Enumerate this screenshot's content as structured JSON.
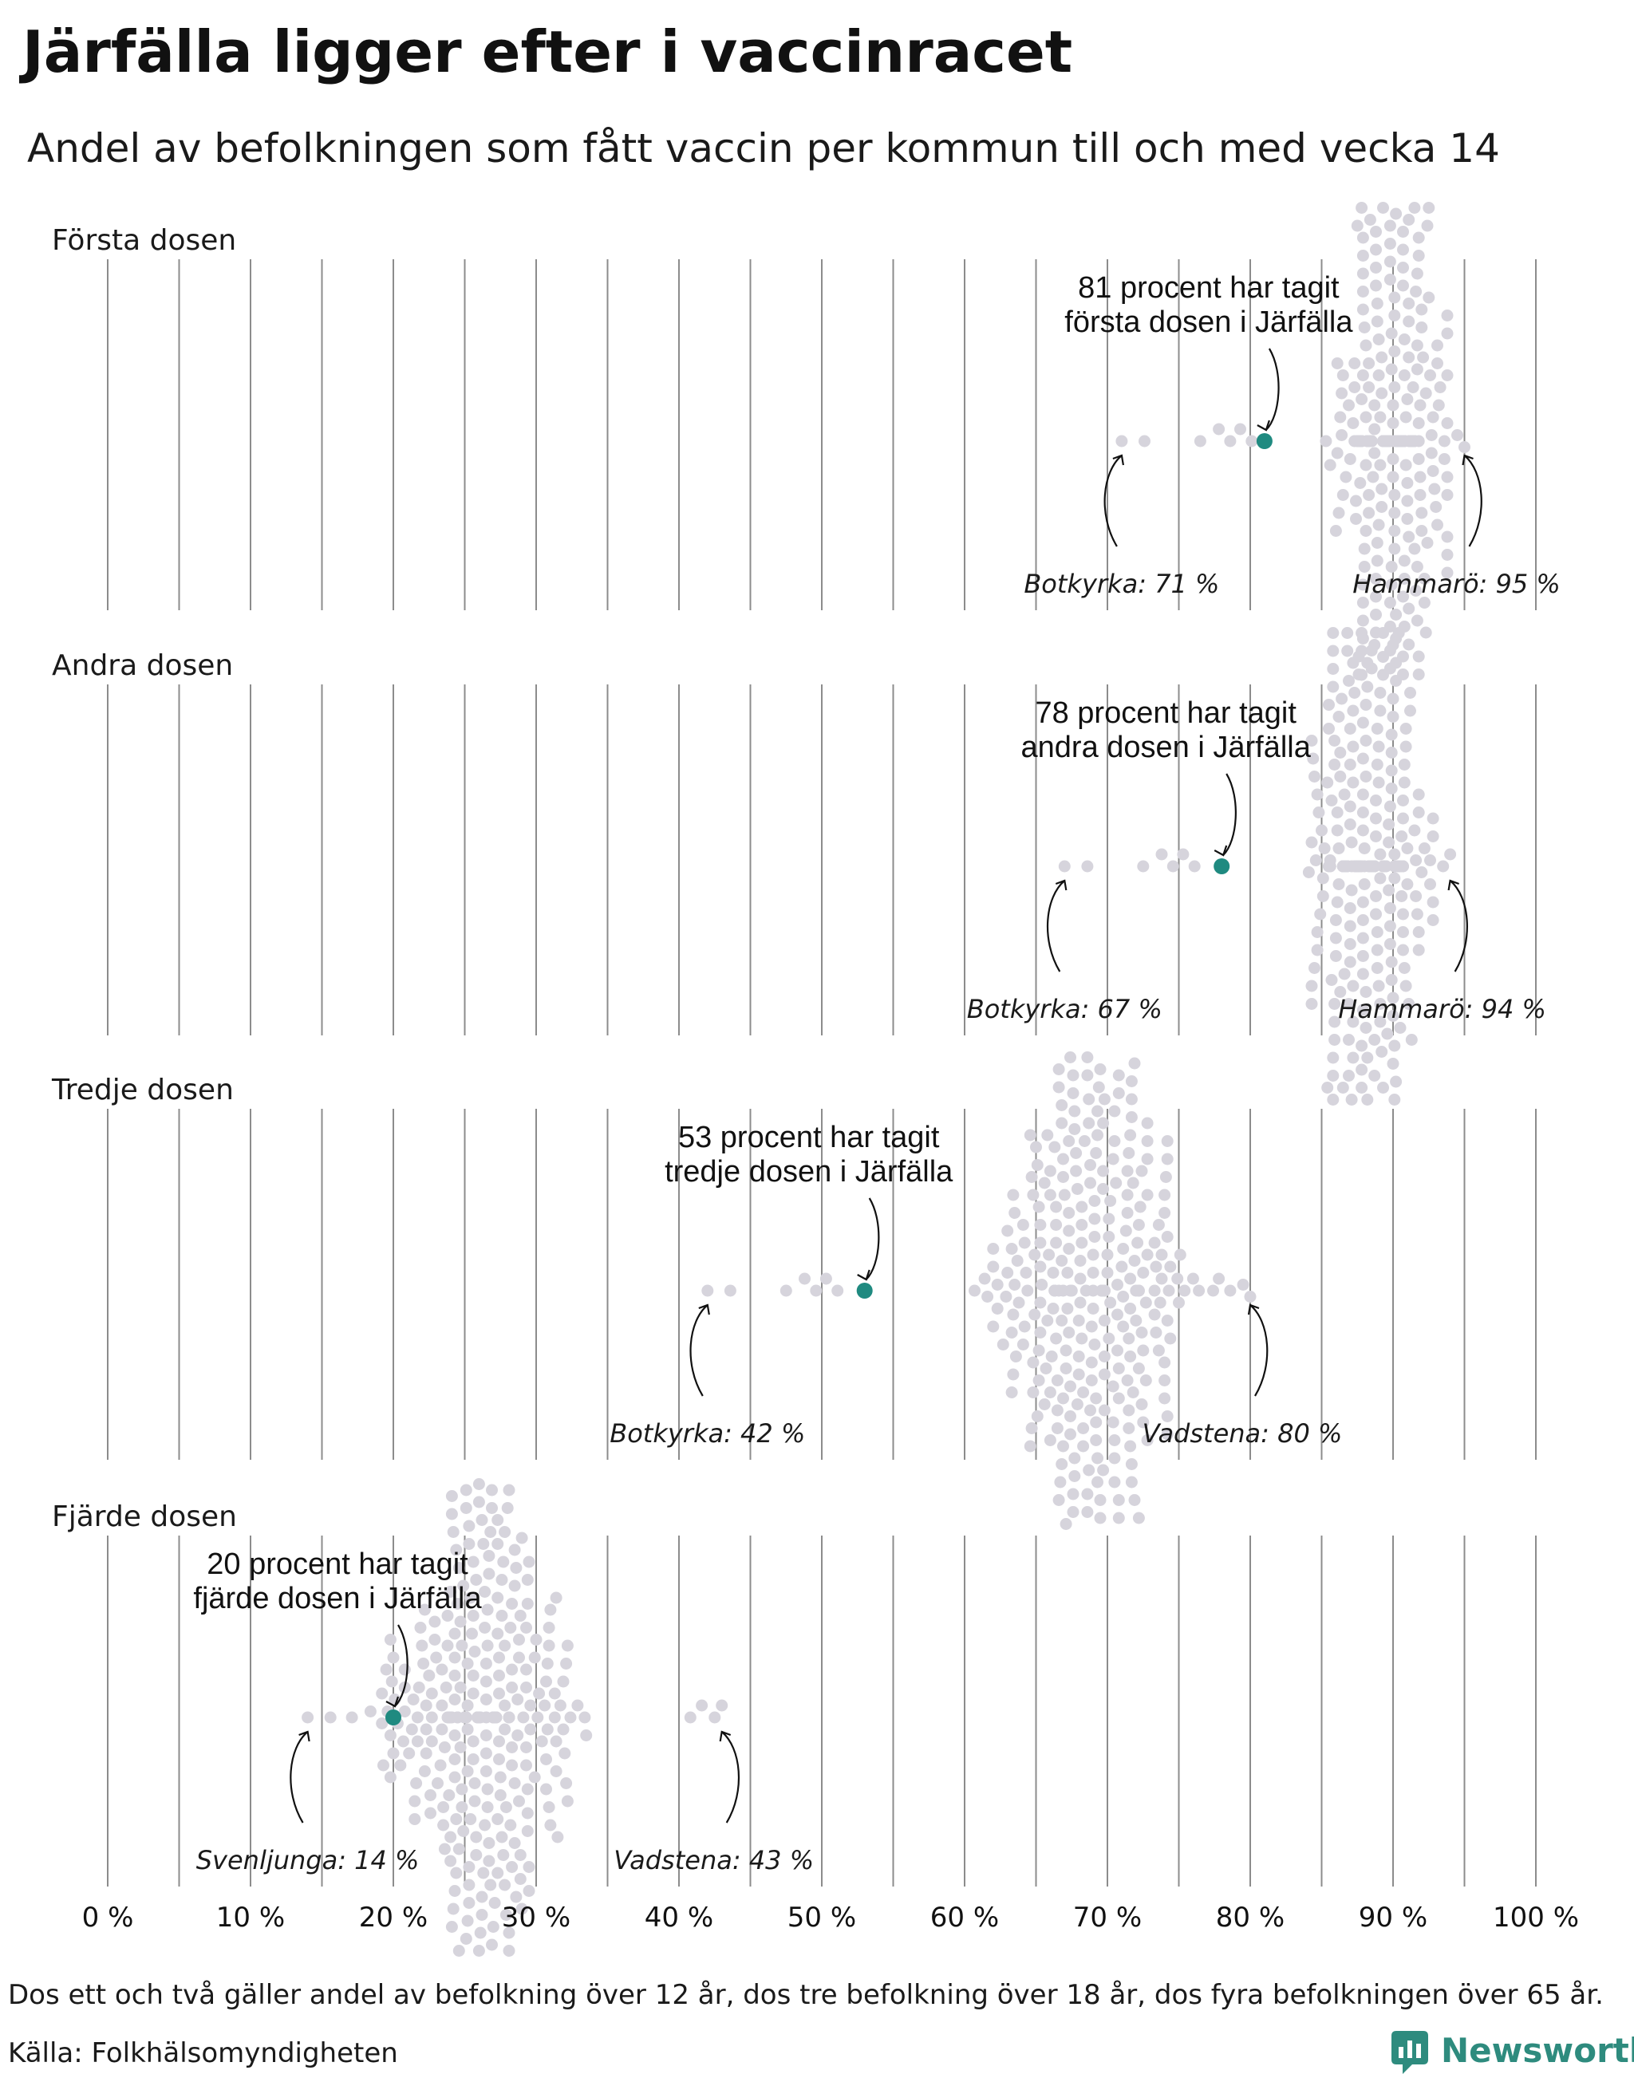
{
  "title": "Järfälla ligger efter i vaccinracet",
  "subtitle": "Andel av befolkningen som fått vaccin per kommun till och med vecka 14",
  "footnote": "Dos ett och två gäller andel av befolkning över 12 år, dos tre befolkning över 18 år, dos fyra befolkningen över 65 år.",
  "source": "Källa: Folkhälsomyndigheten",
  "brand": {
    "name": "Newsworthy",
    "icon": "newsworthy-logo-icon",
    "color": "#2e8b7e"
  },
  "colors": {
    "dots": "#d6d4dc",
    "highlight": "#1f8a80",
    "grid": "#8c8c8c"
  },
  "chart_data": {
    "type": "scatter",
    "subtype": "beeswarm",
    "x_unit": "%",
    "xlim": [
      0,
      100
    ],
    "x_ticks": [
      0,
      10,
      20,
      30,
      40,
      50,
      60,
      70,
      80,
      90,
      100
    ],
    "x_tick_labels": [
      "0 %",
      "10 %",
      "20 %",
      "30 %",
      "40 %",
      "50 %",
      "60 %",
      "70 %",
      "80 %",
      "90 %",
      "100 %"
    ],
    "grid": true,
    "panels": [
      {
        "name": "Första dosen",
        "highlight": {
          "name": "Järfälla",
          "value": 81
        },
        "annotation": [
          "81 procent har tagit",
          "första dosen i Järfälla"
        ],
        "min": {
          "name": "Botkyrka",
          "value": 71,
          "label": "Botkyrka: 71 %"
        },
        "max": {
          "name": "Hammarö",
          "value": 95,
          "label": "Hammarö: 95 %"
        },
        "center": 90,
        "spread": 2.6,
        "n": 290
      },
      {
        "name": "Andra dosen",
        "highlight": {
          "name": "Järfälla",
          "value": 78
        },
        "annotation": [
          "78 procent har tagit",
          "andra dosen i Järfälla"
        ],
        "min": {
          "name": "Botkyrka",
          "value": 67,
          "label": "Botkyrka: 67 %"
        },
        "max": {
          "name": "Hammarö",
          "value": 94,
          "label": "Hammarö: 94 %"
        },
        "center": 88,
        "spread": 2.8,
        "n": 290
      },
      {
        "name": "Tredje dosen",
        "highlight": {
          "name": "Järfälla",
          "value": 53
        },
        "annotation": [
          "53 procent har tagit",
          "tredje dosen i Järfälla"
        ],
        "min": {
          "name": "Botkyrka",
          "value": 42,
          "label": "Botkyrka: 42 %"
        },
        "max": {
          "name": "Vadstena",
          "value": 80,
          "label": "Vadstena: 80 %"
        },
        "center": 69,
        "spread": 4.6,
        "n": 290
      },
      {
        "name": "Fjärde dosen",
        "highlight": {
          "name": "Järfälla",
          "value": 20
        },
        "annotation": [
          "20 procent har tagit",
          "fjärde dosen i Järfälla"
        ],
        "min": {
          "name": "Svenljunga",
          "value": 14,
          "label": "Svenljunga: 14 %"
        },
        "max": {
          "name": "Vadstena",
          "value": 43,
          "label": "Vadstena: 43 %"
        },
        "center": 26.5,
        "spread": 4.2,
        "n": 290
      }
    ]
  }
}
